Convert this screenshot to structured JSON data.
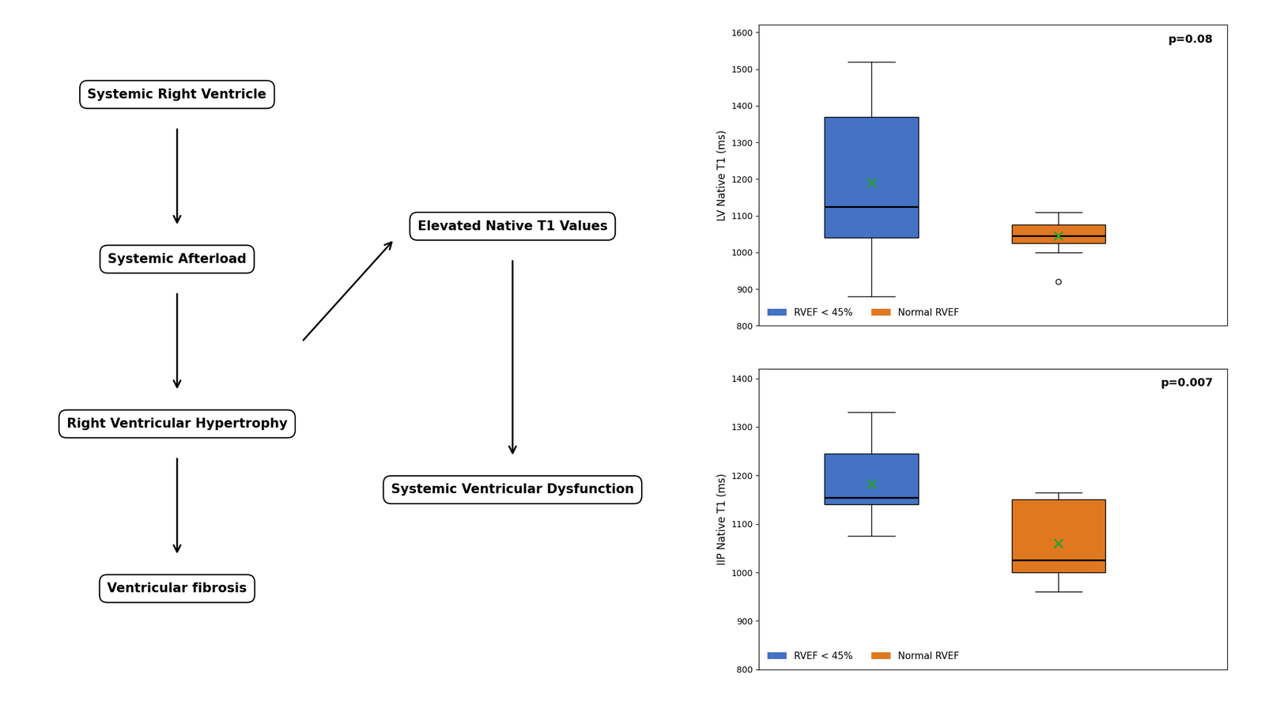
{
  "chart_data": [
    {
      "type": "box",
      "ylabel": "LV Native T1 (ms)",
      "ylim": [
        800,
        1620
      ],
      "yticks": [
        800,
        900,
        1000,
        1100,
        1200,
        1300,
        1400,
        1500,
        1600
      ],
      "annotations": [
        "p=0.08"
      ],
      "legend": "lower left",
      "series": [
        {
          "name": "RVEF < 45%",
          "color": "#4472C4",
          "whisker_low": 880,
          "q1": 1040,
          "median": 1125,
          "q3": 1370,
          "whisker_high": 1520,
          "mean": 1190
        },
        {
          "name": "Normal RVEF",
          "color": "#E07820",
          "whisker_low": 1000,
          "q1": 1025,
          "median": 1045,
          "q3": 1075,
          "whisker_high": 1110,
          "mean": 1045,
          "outliers": [
            920
          ]
        }
      ]
    },
    {
      "type": "box",
      "ylabel": "IIP Native T1 (ms)",
      "ylim": [
        800,
        1420
      ],
      "yticks": [
        800,
        900,
        1000,
        1100,
        1200,
        1300,
        1400
      ],
      "annotations": [
        "p=0.007"
      ],
      "legend": "lower left",
      "series": [
        {
          "name": "RVEF < 45%",
          "color": "#4472C4",
          "whisker_low": 1075,
          "q1": 1140,
          "median": 1155,
          "q3": 1245,
          "whisker_high": 1330,
          "mean": 1183
        },
        {
          "name": "Normal RVEF",
          "color": "#E07820",
          "whisker_low": 960,
          "q1": 1000,
          "median": 1025,
          "q3": 1150,
          "whisker_high": 1165,
          "mean": 1060
        }
      ]
    }
  ],
  "annotations": [
    "Systemic Right Ventricle",
    "Systemic Afterload",
    "Right Ventricular Hypertrophy",
    "Ventricular fibrosis",
    "Elevated Native T1 Values",
    "Systemic Ventricular Dysfunction"
  ]
}
